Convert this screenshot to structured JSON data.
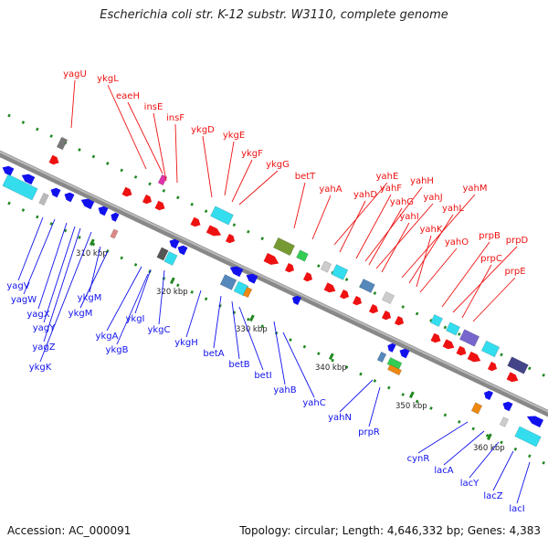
{
  "title": "Escherichia coli str. K-12 substr. W3110, complete genome",
  "footer": {
    "accession": "Accession: AC_000091",
    "summary": "Topology: circular; Length: 4,646,332 bp; Genes: 4,383"
  },
  "colors": {
    "forward_gene": "#ee1111",
    "reverse_gene": "#1111ee",
    "backbone": "#888888",
    "tick": "#228822",
    "cds_cyan": "#33ddee",
    "cds_steelblue": "#5588bb",
    "cds_olive": "#779933",
    "cds_green": "#33cc55",
    "cds_orange": "#ee8811",
    "cds_purple": "#7766cc",
    "cds_navy": "#444488"
  },
  "scale_labels": [
    "310 kbp",
    "320 kbp",
    "330 kbp",
    "340 kbp",
    "350 kbp",
    "360 kbp"
  ],
  "forward_genes": [
    "yagU",
    "ykgL",
    "eaeH",
    "insE",
    "insF",
    "ykgD",
    "ykgE",
    "ykgF",
    "ykgG",
    "betT",
    "yahA",
    "yahE",
    "yahD",
    "yahF",
    "yahH",
    "yahG",
    "yahJ",
    "yahI",
    "yahM",
    "yahL",
    "yahK",
    "yahO",
    "prpB",
    "prpD",
    "prpC",
    "prpE"
  ],
  "reverse_genes": [
    "yagV",
    "yagW",
    "yagX",
    "yagY",
    "yagZ",
    "ykgK",
    "ykgM",
    "ykgM",
    "ykgA",
    "ykgI",
    "ykgB",
    "ykgC",
    "ykgH",
    "betA",
    "betB",
    "betI",
    "yahB",
    "yahC",
    "yahN",
    "prpR",
    "cynR",
    "lacA",
    "lacY",
    "lacZ",
    "lacI"
  ]
}
